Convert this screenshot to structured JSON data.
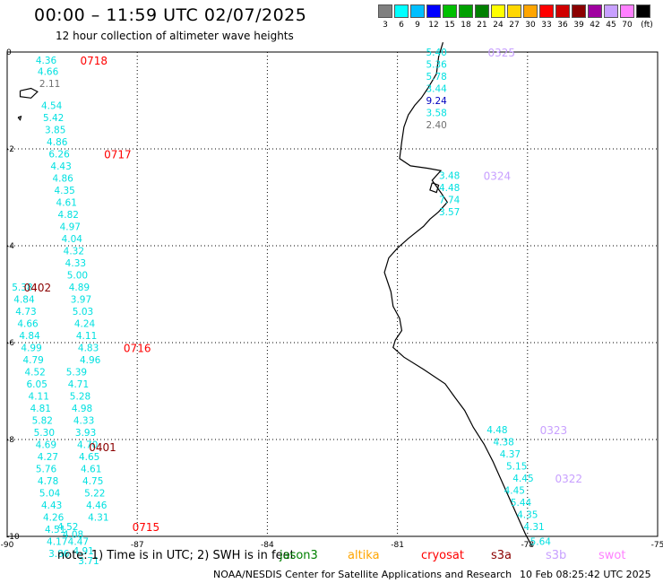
{
  "header": {
    "title": "00:00 – 11:59 UTC 02/07/2025",
    "subtitle": "12 hour collection of altimeter wave heights"
  },
  "legend": {
    "unit": "(ft)",
    "items": [
      {
        "label": "3",
        "color": "#808080"
      },
      {
        "label": "6",
        "color": "#00ffff"
      },
      {
        "label": "9",
        "color": "#00bfff"
      },
      {
        "label": "12",
        "color": "#0000ff"
      },
      {
        "label": "15",
        "color": "#00c000"
      },
      {
        "label": "18",
        "color": "#00a000"
      },
      {
        "label": "21",
        "color": "#008000"
      },
      {
        "label": "24",
        "color": "#ffff00"
      },
      {
        "label": "27",
        "color": "#ffd700"
      },
      {
        "label": "30",
        "color": "#ffa500"
      },
      {
        "label": "33",
        "color": "#ff0000"
      },
      {
        "label": "36",
        "color": "#d00000"
      },
      {
        "label": "39",
        "color": "#8b0000"
      },
      {
        "label": "42",
        "color": "#a000a0"
      },
      {
        "label": "45",
        "color": "#c8a0ff"
      },
      {
        "label": "70",
        "color": "#ff80ff"
      },
      {
        "label": "",
        "color": "#000000"
      }
    ]
  },
  "axes": {
    "lon_ticks": [
      "-90",
      "-87",
      "-84",
      "-81",
      "-78",
      "-75"
    ],
    "lat_ticks": [
      "0",
      "-2",
      "-4",
      "-6",
      "-8",
      "-10"
    ]
  },
  "tracks": [
    {
      "name": "track-0718",
      "time": "0718",
      "time_color": "#ff0000",
      "lon": -89.2,
      "lat": -0.17,
      "points": [
        {
          "lat": -0.17,
          "label": "4.36",
          "color": "#00e0e0"
        },
        {
          "lat": -0.4,
          "label": "4.66",
          "color": "#00e0e0"
        },
        {
          "lat": -0.65,
          "label": "2.11",
          "color": "#707070"
        },
        {
          "lat": -1.1,
          "label": "4.54",
          "color": "#00e0e0"
        },
        {
          "lat": -1.35,
          "label": "5.42",
          "color": "#00e0e0"
        },
        {
          "lat": -1.6,
          "label": "3.85",
          "color": "#00e0e0"
        },
        {
          "lat": -1.85,
          "label": "4.86",
          "color": "#00e0e0"
        }
      ]
    },
    {
      "name": "track-0717",
      "time": "0717",
      "time_color": "#ff0000",
      "points": [
        {
          "lat": -2.1,
          "label": "6.26",
          "color": "#00e0e0"
        },
        {
          "lat": -2.35,
          "label": "4.43",
          "color": "#00e0e0"
        },
        {
          "lat": -2.6,
          "label": "4.86",
          "color": "#00e0e0"
        },
        {
          "lat": -2.85,
          "label": "4.35",
          "color": "#00e0e0"
        },
        {
          "lat": -3.1,
          "label": "4.61",
          "color": "#00e0e0"
        },
        {
          "lat": -3.35,
          "label": "4.82",
          "color": "#00e0e0"
        },
        {
          "lat": -3.6,
          "label": "4.97",
          "color": "#00e0e0"
        },
        {
          "lat": -3.85,
          "label": "4.04",
          "color": "#00e0e0"
        },
        {
          "lat": -4.1,
          "label": "4.32",
          "color": "#00e0e0"
        },
        {
          "lat": -4.35,
          "label": "4.33",
          "color": "#00e0e0"
        },
        {
          "lat": -4.6,
          "label": "5.00",
          "color": "#00e0e0"
        },
        {
          "lat": -4.85,
          "label": "4.89",
          "color": "#00e0e0"
        },
        {
          "lat": -5.1,
          "label": "3.97",
          "color": "#00e0e0"
        },
        {
          "lat": -5.35,
          "label": "5.03",
          "color": "#00e0e0"
        },
        {
          "lat": -5.6,
          "label": "4.24",
          "color": "#00e0e0"
        },
        {
          "lat": -5.85,
          "label": "4.11",
          "color": "#00e0e0"
        },
        {
          "lat": -6.1,
          "label": "4.83",
          "color": "#00e0e0"
        },
        {
          "lat": -6.35,
          "label": "4.96",
          "color": "#00e0e0"
        }
      ]
    },
    {
      "name": "track-0716",
      "time": "0716",
      "time_color": "#ff0000",
      "points": [
        {
          "lat": -6.6,
          "label": "5.39",
          "color": "#00e0e0"
        },
        {
          "lat": -6.85,
          "label": "4.71",
          "color": "#00e0e0"
        },
        {
          "lat": -7.1,
          "label": "5.28",
          "color": "#00e0e0"
        },
        {
          "lat": -7.35,
          "label": "4.98",
          "color": "#00e0e0"
        },
        {
          "lat": -7.6,
          "label": "4.33",
          "color": "#00e0e0"
        },
        {
          "lat": -7.85,
          "label": "3.93",
          "color": "#00e0e0"
        },
        {
          "lat": -8.1,
          "label": "4.70",
          "color": "#00e0e0"
        },
        {
          "lat": -8.35,
          "label": "4.65",
          "color": "#00e0e0"
        },
        {
          "lat": -8.6,
          "label": "4.61",
          "color": "#00e0e0"
        },
        {
          "lat": -8.85,
          "label": "4.75",
          "color": "#00e0e0"
        },
        {
          "lat": -9.1,
          "label": "5.22",
          "color": "#00e0e0"
        },
        {
          "lat": -9.35,
          "label": "4.46",
          "color": "#00e0e0"
        },
        {
          "lat": -9.6,
          "label": "4.31",
          "color": "#00e0e0"
        }
      ]
    },
    {
      "name": "track-0402",
      "time": "0402",
      "time_color": "#8b0000",
      "points": [
        {
          "lat": -4.85,
          "label": "5.38",
          "color": "#00e0e0"
        },
        {
          "lat": -5.1,
          "label": "4.84",
          "color": "#00e0e0"
        },
        {
          "lat": -5.35,
          "label": "4.73",
          "color": "#00e0e0"
        },
        {
          "lat": -5.6,
          "label": "4.66",
          "color": "#00e0e0"
        },
        {
          "lat": -5.85,
          "label": "4.84",
          "color": "#00e0e0"
        },
        {
          "lat": -6.1,
          "label": "4.99",
          "color": "#00e0e0"
        },
        {
          "lat": -6.35,
          "label": "4.79",
          "color": "#00e0e0"
        },
        {
          "lat": -6.6,
          "label": "4.52",
          "color": "#00e0e0"
        },
        {
          "lat": -6.85,
          "label": "6.05",
          "color": "#00e0e0"
        },
        {
          "lat": -7.1,
          "label": "4.11",
          "color": "#00e0e0"
        },
        {
          "lat": -7.35,
          "label": "4.81",
          "color": "#00e0e0"
        },
        {
          "lat": -7.6,
          "label": "5.82",
          "color": "#00e0e0"
        },
        {
          "lat": -7.85,
          "label": "5.30",
          "color": "#00e0e0"
        },
        {
          "lat": -8.1,
          "label": "4.69",
          "color": "#00e0e0"
        },
        {
          "lat": -8.35,
          "label": "4.27",
          "color": "#00e0e0"
        }
      ]
    },
    {
      "name": "track-0401",
      "time": "0401",
      "time_color": "#8b0000",
      "points": [
        {
          "lat": -8.6,
          "label": "5.76",
          "color": "#00e0e0"
        },
        {
          "lat": -8.85,
          "label": "4.78",
          "color": "#00e0e0"
        },
        {
          "lat": -9.1,
          "label": "5.04",
          "color": "#00e0e0"
        },
        {
          "lat": -9.35,
          "label": "4.43",
          "color": "#00e0e0"
        },
        {
          "lat": -9.6,
          "label": "4.26",
          "color": "#00e0e0"
        },
        {
          "lat": -9.85,
          "label": "4.51",
          "color": "#00e0e0"
        },
        {
          "lat": -10.1,
          "label": "4.17",
          "color": "#00e0e0"
        },
        {
          "lat": -10.35,
          "label": "3.86",
          "color": "#00e0e0"
        }
      ]
    },
    {
      "name": "track-0715",
      "time": "0715",
      "time_color": "#ff0000",
      "points": [
        {
          "lat": -9.8,
          "label": "4.52",
          "color": "#00e0e0"
        },
        {
          "lat": -9.95,
          "label": "4.08",
          "color": "#00e0e0"
        },
        {
          "lat": -10.1,
          "label": "4.47",
          "color": "#00e0e0"
        },
        {
          "lat": -10.3,
          "label": "4.91",
          "color": "#00e0e0"
        },
        {
          "lat": -10.5,
          "label": "3.71",
          "color": "#00e0e0"
        }
      ]
    },
    {
      "name": "track-0325",
      "time": "0325",
      "time_color": "#c8a0ff",
      "points": [
        {
          "lat": 0.0,
          "label": "5.40",
          "color": "#00e0e0"
        },
        {
          "lat": -0.25,
          "label": "5.36",
          "color": "#00e0e0"
        },
        {
          "lat": -0.5,
          "label": "5.78",
          "color": "#00e0e0"
        },
        {
          "lat": -0.75,
          "label": "3.44",
          "color": "#00e0e0"
        },
        {
          "lat": -1.0,
          "label": "9.24",
          "color": "#0000c0"
        },
        {
          "lat": -1.25,
          "label": "3.58",
          "color": "#00e0e0"
        },
        {
          "lat": -1.5,
          "label": "2.40",
          "color": "#707070"
        }
      ]
    },
    {
      "name": "track-0324",
      "time": "0324",
      "time_color": "#c8a0ff",
      "points": [
        {
          "lat": -2.55,
          "label": "3.48",
          "color": "#00e0e0"
        },
        {
          "lat": -2.8,
          "label": "4.48",
          "color": "#00e0e0"
        },
        {
          "lat": -3.05,
          "label": "7.74",
          "color": "#00e0e0"
        },
        {
          "lat": -3.3,
          "label": "3.57",
          "color": "#00e0e0"
        }
      ]
    },
    {
      "name": "track-0323",
      "time": "0323",
      "time_color": "#c8a0ff",
      "points": [
        {
          "lat": -7.8,
          "label": "4.48",
          "color": "#00e0e0"
        },
        {
          "lat": -8.05,
          "label": "4.38",
          "color": "#00e0e0"
        },
        {
          "lat": -8.3,
          "label": "4.37",
          "color": "#00e0e0"
        },
        {
          "lat": -8.55,
          "label": "5.15",
          "color": "#00e0e0"
        },
        {
          "lat": -8.8,
          "label": "4.45",
          "color": "#00e0e0"
        }
      ]
    },
    {
      "name": "track-0322",
      "time": "0322",
      "time_color": "#c8a0ff",
      "points": [
        {
          "lat": -9.05,
          "label": "4.45",
          "color": "#00e0e0"
        },
        {
          "lat": -9.3,
          "label": "5.44",
          "color": "#00e0e0"
        },
        {
          "lat": -9.55,
          "label": "4.35",
          "color": "#00e0e0"
        },
        {
          "lat": -9.8,
          "label": "4.31",
          "color": "#00e0e0"
        },
        {
          "lat": -10.1,
          "label": "5.64",
          "color": "#00e0e0"
        }
      ]
    }
  ],
  "footer": {
    "note": "note: 1) Time is in UTC; 2) SWH is in feet",
    "satellites": [
      {
        "label": "jason3",
        "color": "#008000"
      },
      {
        "label": "altika",
        "color": "#ffa500"
      },
      {
        "label": "cryosat",
        "color": "#ff0000"
      },
      {
        "label": "s3a",
        "color": "#8b0000"
      },
      {
        "label": "s3b",
        "color": "#c8a0ff"
      },
      {
        "label": "swot",
        "color": "#ff80ff"
      }
    ],
    "credit": "NOAA/NESDIS Center for Satellite Applications and Research",
    "timestamp": "10 Feb 08:25:42 UTC 2025"
  }
}
